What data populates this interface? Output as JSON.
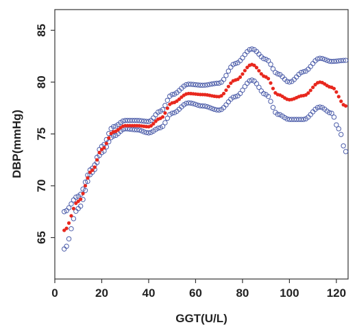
{
  "chart_data": {
    "type": "scatter",
    "title": "",
    "xlabel": "GGT(U/L)",
    "ylabel": "DBP(mmHg)",
    "xlim": [
      0,
      125
    ],
    "ylim": [
      61,
      87
    ],
    "x_ticks": [
      "0",
      "20",
      "40",
      "60",
      "80",
      "100",
      "120"
    ],
    "y_ticks": [
      "65",
      "70",
      "75",
      "80",
      "85"
    ],
    "grid": false,
    "legend": "none",
    "series": [
      {
        "role": "fit",
        "color": "#e8281e",
        "marker": "filled-circle",
        "x": [
          4,
          10,
          16,
          20,
          25,
          30,
          35,
          40,
          45,
          50,
          57,
          63,
          70,
          77,
          84,
          90,
          95,
          100,
          106,
          113,
          118,
          124
        ],
        "y": [
          65.7,
          68.5,
          71.5,
          73.5,
          75.2,
          75.8,
          75.8,
          75.7,
          76.5,
          78.0,
          78.9,
          78.8,
          78.6,
          80.2,
          81.7,
          80.5,
          78.8,
          78.3,
          78.7,
          80.0,
          79.5,
          77.7
        ]
      },
      {
        "role": "upper-bound",
        "color": "#4a5ba8",
        "marker": "open-circle",
        "x": [
          4,
          10,
          16,
          20,
          25,
          30,
          35,
          40,
          45,
          50,
          57,
          63,
          70,
          77,
          84,
          90,
          95,
          100,
          106,
          113,
          118,
          124
        ],
        "y": [
          67.5,
          69.0,
          71.7,
          73.8,
          75.7,
          76.3,
          76.3,
          76.2,
          77.2,
          78.8,
          79.8,
          79.7,
          79.9,
          81.8,
          83.2,
          82.2,
          80.8,
          80.0,
          81.0,
          82.3,
          82.0,
          82.1
        ]
      },
      {
        "role": "lower-bound",
        "color": "#4a5ba8",
        "marker": "open-circle",
        "x": [
          4,
          10,
          16,
          20,
          25,
          30,
          35,
          40,
          45,
          50,
          57,
          63,
          70,
          77,
          84,
          90,
          95,
          100,
          106,
          113,
          118,
          121,
          124
        ],
        "y": [
          63.9,
          67.8,
          71.3,
          73.2,
          74.8,
          75.5,
          75.4,
          75.1,
          75.6,
          77.0,
          78.0,
          77.7,
          77.3,
          78.6,
          80.2,
          78.8,
          76.9,
          76.4,
          76.4,
          77.6,
          77.0,
          75.5,
          73.3
        ]
      }
    ]
  }
}
